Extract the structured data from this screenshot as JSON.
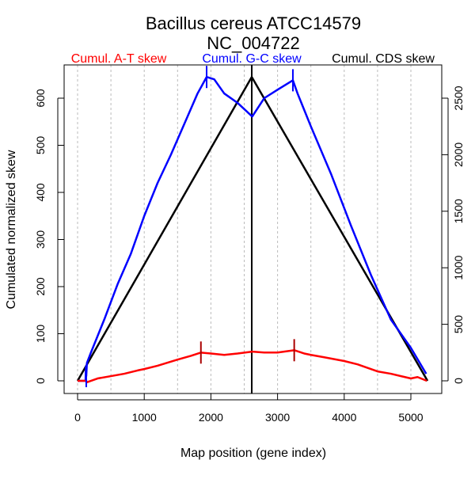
{
  "chart_data": {
    "type": "line",
    "title": "Bacillus cereus ATCC14579",
    "subtitle": "NC_004722",
    "xlabel": "Map position (gene index)",
    "ylabel": "Cumulated normalized skew",
    "xlim": [
      0,
      5240
    ],
    "ylim": [
      0,
      645
    ],
    "y2lim": [
      0,
      2710
    ],
    "xticks": [
      0,
      1000,
      2000,
      3000,
      4000,
      5000
    ],
    "yticks": [
      0,
      100,
      200,
      300,
      400,
      500,
      600
    ],
    "y2ticks": [
      0,
      500,
      1000,
      1500,
      2000,
      2500
    ],
    "grid": "vertical dotted every 500",
    "legend": [
      {
        "label": "Cumul. A-T skew",
        "color": "#ff0000"
      },
      {
        "label": "Cumul. G-C skew",
        "color": "#0000ff"
      },
      {
        "label": "Cumul. CDS skew",
        "color": "#000000"
      }
    ],
    "series": [
      {
        "name": "Cumul. A-T skew",
        "color": "#ff0000",
        "x": [
          0,
          130,
          140,
          300,
          500,
          700,
          900,
          1000,
          1200,
          1500,
          1700,
          1850,
          2000,
          2200,
          2400,
          2620,
          2800,
          3000,
          3250,
          3400,
          3500,
          3700,
          4000,
          4200,
          4500,
          4700,
          5000,
          5100,
          5240
        ],
        "y": [
          0,
          0,
          -3,
          5,
          10,
          15,
          22,
          25,
          32,
          45,
          53,
          60,
          58,
          55,
          58,
          62,
          60,
          60,
          65,
          58,
          55,
          50,
          42,
          35,
          20,
          15,
          5,
          8,
          0
        ]
      },
      {
        "name": "Cumul. G-C skew",
        "color": "#0000ff",
        "x": [
          0,
          120,
          125,
          130,
          140,
          200,
          400,
          600,
          800,
          1000,
          1200,
          1400,
          1600,
          1800,
          1936,
          2050,
          2200,
          2400,
          2620,
          2800,
          3000,
          3230,
          3300,
          3500,
          3800,
          4100,
          4400,
          4700,
          5000,
          5230
        ],
        "y": [
          0,
          0,
          30,
          10,
          38,
          60,
          130,
          205,
          270,
          350,
          420,
          480,
          545,
          610,
          645,
          640,
          610,
          590,
          561,
          600,
          618,
          638,
          610,
          540,
          440,
          330,
          225,
          130,
          70,
          15
        ]
      },
      {
        "name": "Cumul. CDS skew",
        "color": "#000000",
        "x": [
          0,
          2613,
          5250
        ],
        "y": [
          0,
          645,
          0
        ]
      }
    ],
    "markers": [
      {
        "series": "Cumul. A-T skew",
        "x": 1850,
        "color": "#aa0000"
      },
      {
        "series": "Cumul. A-T skew",
        "x": 3250,
        "color": "#aa0000"
      },
      {
        "series": "Cumul. G-C skew",
        "x": 130,
        "color": "#0000ff"
      },
      {
        "series": "Cumul. G-C skew",
        "x": 1936,
        "color": "#0000ff"
      },
      {
        "series": "Cumul. G-C skew",
        "x": 3230,
        "color": "#0000ff"
      }
    ],
    "vline": {
      "x": 2613,
      "color": "#000000"
    }
  }
}
